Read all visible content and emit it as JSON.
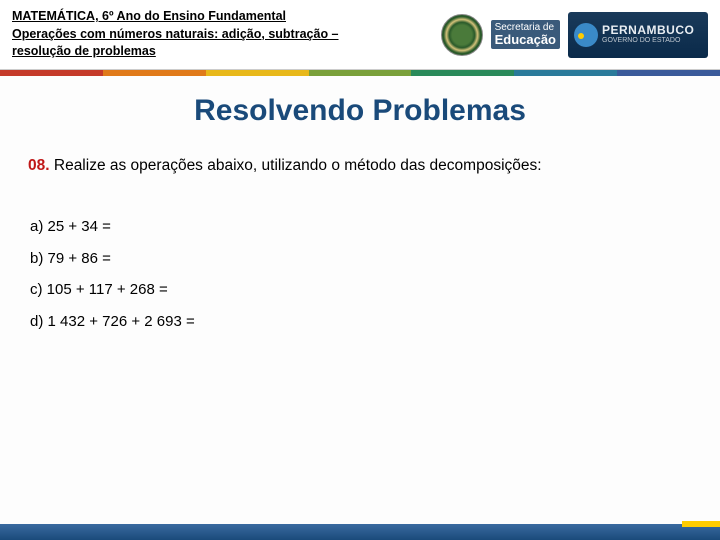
{
  "header": {
    "line1": "MATEMÁTICA, 6º Ano do Ensino Fundamental",
    "line2": "Operações com números naturais: adição, subtração –",
    "line3": "resolução de problemas",
    "sec_small": "Secretaria de",
    "sec_big": "Educação",
    "pe_name": "PERNAMBUCO",
    "pe_sub": "GOVERNO DO ESTADO"
  },
  "stripe_colors": [
    "#c53a2a",
    "#e07a1a",
    "#e8b81a",
    "#7aa03a",
    "#2a8a5a",
    "#2a7a9a",
    "#3a5a9a"
  ],
  "title": "Resolvendo Problemas",
  "question": {
    "num": "08.",
    "text": "Realize as operações abaixo, utilizando o método das decomposições:"
  },
  "items": {
    "a": "a)  25 + 34 =",
    "b": "b)  79 + 86 =",
    "c": "c)  105 + 117 + 268 =",
    "d": "d)  1 432 + 726 + 2 693 ="
  }
}
